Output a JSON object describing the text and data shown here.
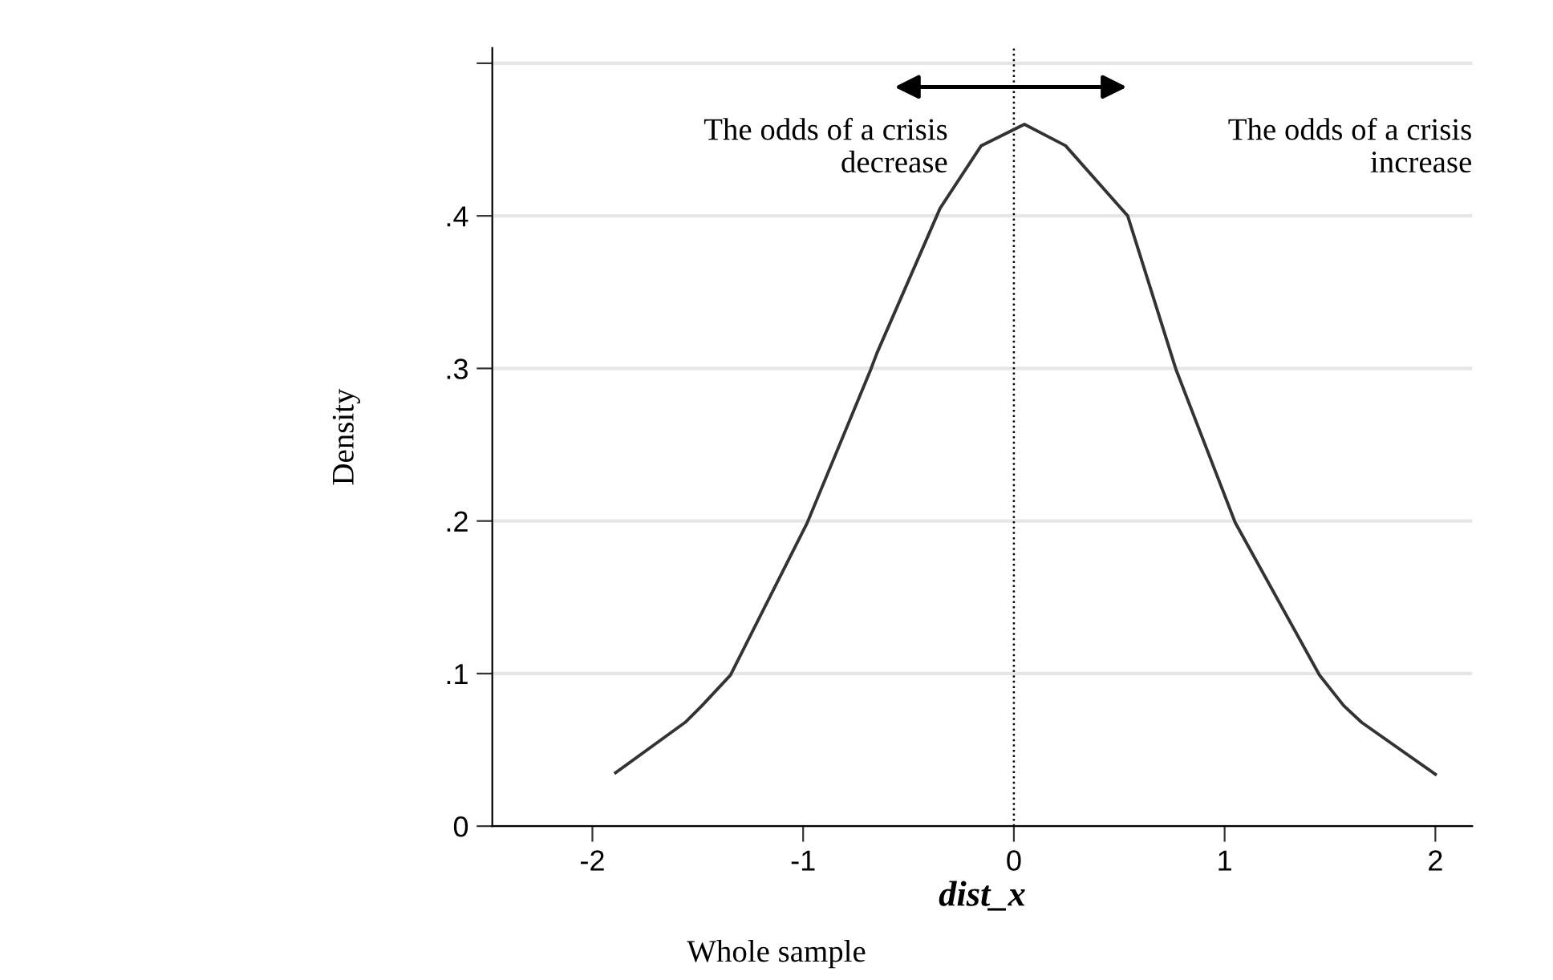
{
  "chart_data": {
    "type": "line",
    "xlabel": "dist_x",
    "ylabel": "Density",
    "annotations": [
      "The odds of a crisis\ndecrease",
      "The odds of a crisis\nincrease",
      "Whole sample"
    ],
    "series": [
      {
        "color": "#333333",
        "x": [
          -1.89,
          -1.56,
          -1.48,
          -1.345,
          -0.98,
          -0.68,
          -0.65,
          -0.35,
          -0.155,
          0.05,
          0.245,
          0.54,
          0.77,
          1.05,
          1.45,
          1.565,
          1.65,
          2.0
        ],
        "values": [
          0.035,
          0.068,
          0.079,
          0.099,
          0.199,
          0.299,
          0.31,
          0.405,
          0.446,
          0.46,
          0.446,
          0.4,
          0.299,
          0.199,
          0.099,
          0.079,
          0.068,
          0.034
        ]
      }
    ],
    "xlim": [
      -2.475,
      2.175
    ],
    "xticks": [
      -2,
      -1,
      0,
      1,
      2
    ],
    "ylim": [
      0,
      0.51
    ],
    "yticks": [
      0,
      {
        "value": 0.1,
        "label": ".1"
      },
      {
        "value": 0.2,
        "label": ".2"
      },
      {
        "value": 0.3,
        "label": ".3"
      },
      {
        "value": 0.4,
        "label": ".4"
      },
      {
        "value": 0.5,
        "label": null
      }
    ],
    "ref_lines": [
      {
        "axis": "x",
        "value": 0,
        "color": "#000000",
        "line_style": "dotted"
      }
    ],
    "grid": "y",
    "line_style": "solid",
    "marker": "none"
  }
}
